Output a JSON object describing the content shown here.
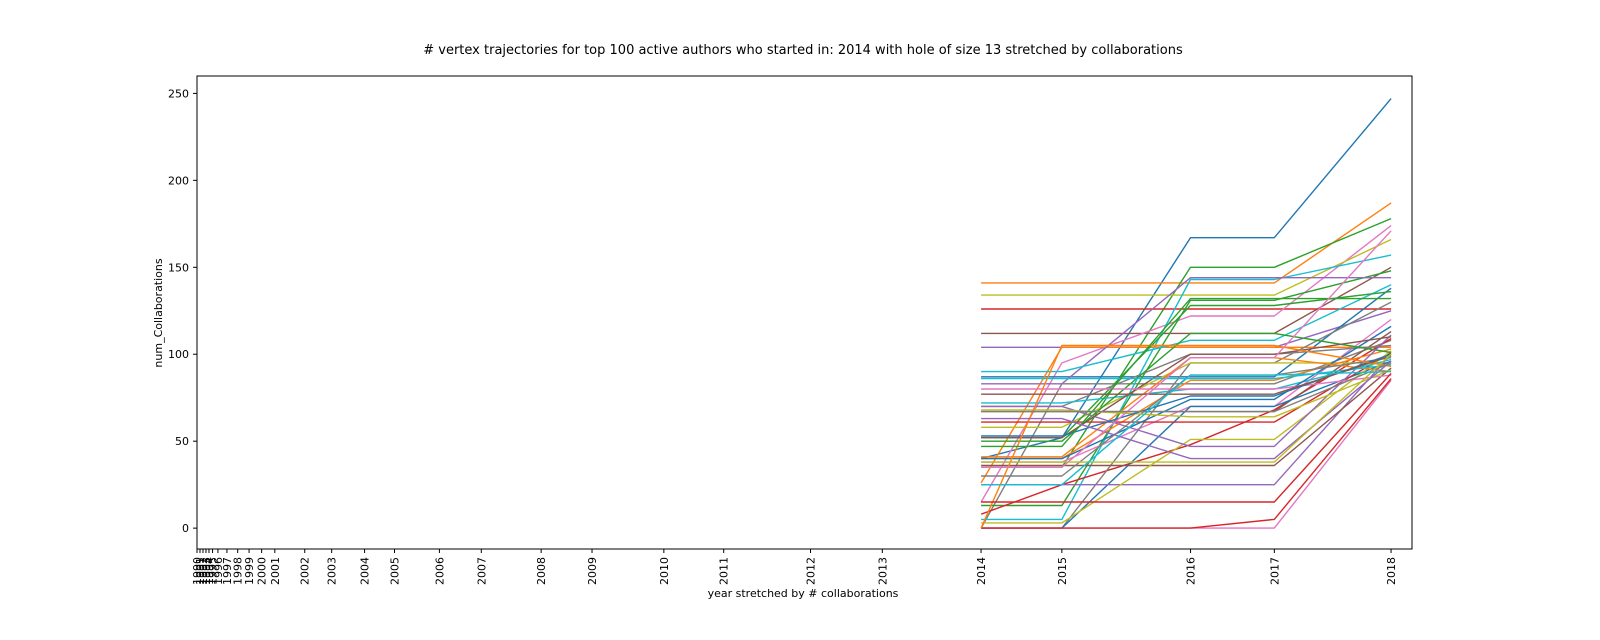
{
  "chart_data": {
    "type": "line",
    "title": "# vertex trajectories for top 100 active authors who started in: 2014 with hole of size 13 stretched by collaborations",
    "xlabel": "year stretched by # collaborations",
    "ylabel": "num_Collaborations",
    "x_ticks": [
      {
        "label": "1990",
        "x": 0
      },
      {
        "label": "1991",
        "x": 0.5
      },
      {
        "label": "1992",
        "x": 1
      },
      {
        "label": "1993",
        "x": 1.5
      },
      {
        "label": "1994",
        "x": 2
      },
      {
        "label": "1995",
        "x": 2.6
      },
      {
        "label": "1996",
        "x": 3.5
      },
      {
        "label": "1997",
        "x": 5
      },
      {
        "label": "1998",
        "x": 6.8
      },
      {
        "label": "1999",
        "x": 8.7
      },
      {
        "label": "2000",
        "x": 10.8
      },
      {
        "label": "2001",
        "x": 13
      },
      {
        "label": "2002",
        "x": 18
      },
      {
        "label": "2003",
        "x": 22.5
      },
      {
        "label": "2004",
        "x": 28
      },
      {
        "label": "2005",
        "x": 33
      },
      {
        "label": "2006",
        "x": 40.5
      },
      {
        "label": "2007",
        "x": 47.5
      },
      {
        "label": "2008",
        "x": 57.5
      },
      {
        "label": "2009",
        "x": 66
      },
      {
        "label": "2010",
        "x": 78
      },
      {
        "label": "2011",
        "x": 88
      },
      {
        "label": "2012",
        "x": 102.5
      },
      {
        "label": "2013",
        "x": 114.5
      },
      {
        "label": "2014",
        "x": 131
      },
      {
        "label": "2015",
        "x": 144.5
      },
      {
        "label": "2016",
        "x": 166
      },
      {
        "label": "2017",
        "x": 180
      },
      {
        "label": "2018",
        "x": 199.5
      }
    ],
    "xlim": [
      0,
      203
    ],
    "ylim": [
      -12,
      260
    ],
    "yticks": [
      0,
      50,
      100,
      150,
      200,
      250
    ],
    "grid": false,
    "legend": "none",
    "series_x": [
      131,
      144.5,
      166,
      180,
      199.5
    ],
    "series": [
      {
        "color": "#1f77b4",
        "values": [
          40,
          52,
          167,
          167,
          247
        ]
      },
      {
        "color": "#ff7f0e",
        "values": [
          141,
          141,
          141,
          141,
          187
        ]
      },
      {
        "color": "#2ca02c",
        "values": [
          35,
          35,
          150,
          150,
          178
        ]
      },
      {
        "color": "#d62728",
        "values": [
          126,
          126,
          126,
          126,
          126
        ]
      },
      {
        "color": "#9467bd",
        "values": [
          104,
          104,
          104,
          104,
          125
        ]
      },
      {
        "color": "#8c564b",
        "values": [
          112,
          112,
          112,
          112,
          150
        ]
      },
      {
        "color": "#e377c2",
        "values": [
          15,
          95,
          122,
          122,
          174
        ]
      },
      {
        "color": "#7f7f7f",
        "values": [
          0,
          83,
          83,
          83,
          108
        ]
      },
      {
        "color": "#bcbd22",
        "values": [
          134,
          134,
          134,
          134,
          166
        ]
      },
      {
        "color": "#17becf",
        "values": [
          5,
          5,
          143,
          143,
          157
        ]
      },
      {
        "color": "#1f77b4",
        "values": [
          87,
          87,
          87,
          87,
          138
        ]
      },
      {
        "color": "#ff7f0e",
        "values": [
          26,
          104,
          104,
          104,
          104
        ]
      },
      {
        "color": "#2ca02c",
        "values": [
          13,
          13,
          131,
          131,
          148
        ]
      },
      {
        "color": "#d62728",
        "values": [
          8,
          25,
          48,
          68,
          109
        ]
      },
      {
        "color": "#9467bd",
        "values": [
          83,
          83,
          144,
          144,
          144
        ]
      },
      {
        "color": "#8c564b",
        "values": [
          67,
          67,
          67,
          67,
          113
        ]
      },
      {
        "color": "#e377c2",
        "values": [
          38,
          38,
          70,
          70,
          120
        ]
      },
      {
        "color": "#7f7f7f",
        "values": [
          0,
          0,
          95,
          95,
          130
        ]
      },
      {
        "color": "#bcbd22",
        "values": [
          58,
          58,
          95,
          95,
          95
        ]
      },
      {
        "color": "#17becf",
        "values": [
          90,
          90,
          108,
          108,
          140
        ]
      },
      {
        "color": "#1f77b4",
        "values": [
          0,
          0,
          70,
          70,
          96
        ]
      },
      {
        "color": "#ff7f0e",
        "values": [
          40,
          40,
          85,
          85,
          103
        ]
      },
      {
        "color": "#2ca02c",
        "values": [
          52,
          52,
          128,
          128,
          136
        ]
      },
      {
        "color": "#d62728",
        "values": [
          61,
          61,
          61,
          61,
          101
        ]
      },
      {
        "color": "#9467bd",
        "values": [
          25,
          25,
          25,
          25,
          100
        ]
      },
      {
        "color": "#8c564b",
        "values": [
          36,
          36,
          36,
          36,
          92
        ]
      },
      {
        "color": "#e377c2",
        "values": [
          0,
          0,
          0,
          0,
          85
        ]
      },
      {
        "color": "#7f7f7f",
        "values": [
          70,
          70,
          100,
          100,
          105
        ]
      },
      {
        "color": "#bcbd22",
        "values": [
          3,
          3,
          51,
          51,
          102
        ]
      },
      {
        "color": "#17becf",
        "values": [
          72,
          72,
          80,
          80,
          97
        ]
      },
      {
        "color": "#1f77b4",
        "values": [
          40,
          40,
          74,
          74,
          116
        ]
      },
      {
        "color": "#ff7f0e",
        "values": [
          41,
          41,
          98,
          98,
          90
        ]
      },
      {
        "color": "#2ca02c",
        "values": [
          50,
          50,
          112,
          112,
          101
        ]
      },
      {
        "color": "#d62728",
        "values": [
          0,
          0,
          0,
          5,
          86
        ]
      },
      {
        "color": "#9467bd",
        "values": [
          70,
          70,
          47,
          47,
          111
        ]
      },
      {
        "color": "#8c564b",
        "values": [
          52,
          52,
          100,
          100,
          110
        ]
      },
      {
        "color": "#e377c2",
        "values": [
          80,
          80,
          80,
          80,
          88
        ]
      },
      {
        "color": "#7f7f7f",
        "values": [
          30,
          30,
          88,
          88,
          98
        ]
      },
      {
        "color": "#bcbd22",
        "values": [
          68,
          68,
          64,
          64,
          91
        ]
      },
      {
        "color": "#17becf",
        "values": [
          86,
          86,
          86,
          86,
          94
        ]
      },
      {
        "color": "#1f77b4",
        "values": [
          53,
          53,
          76,
          76,
          100
        ]
      },
      {
        "color": "#ff7f0e",
        "values": [
          0,
          105,
          105,
          105,
          93
        ]
      },
      {
        "color": "#2ca02c",
        "values": [
          47,
          47,
          132,
          132,
          132
        ]
      },
      {
        "color": "#d62728",
        "values": [
          15,
          15,
          15,
          15,
          89
        ]
      },
      {
        "color": "#9467bd",
        "values": [
          63,
          63,
          40,
          40,
          96
        ]
      },
      {
        "color": "#8c564b",
        "values": [
          77,
          77,
          77,
          77,
          99
        ]
      },
      {
        "color": "#e377c2",
        "values": [
          35,
          35,
          98,
          98,
          171
        ]
      },
      {
        "color": "#7f7f7f",
        "values": [
          67,
          67,
          67,
          67,
          95
        ]
      },
      {
        "color": "#bcbd22",
        "values": [
          38,
          38,
          38,
          38,
          100
        ]
      },
      {
        "color": "#17becf",
        "values": [
          25,
          25,
          88,
          88,
          90
        ]
      }
    ]
  }
}
